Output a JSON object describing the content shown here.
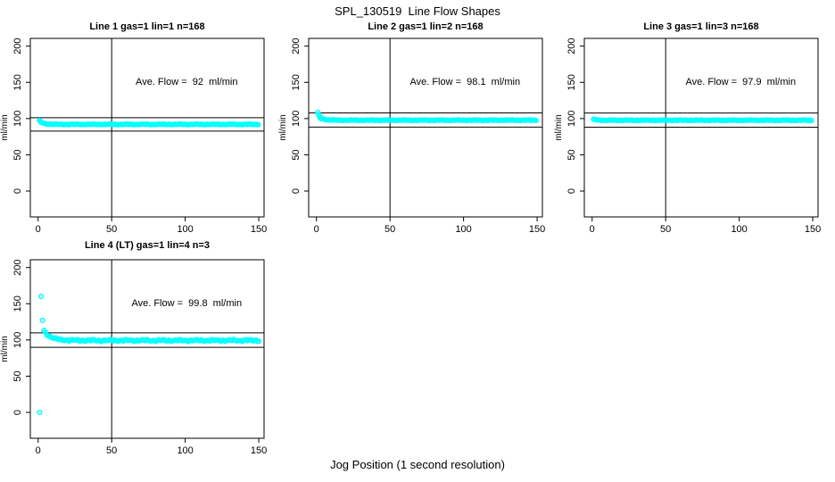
{
  "title": "SPL_130519  Line Flow Shapes",
  "xlabel": "Jog Position (1 second resolution)",
  "point_color": "#00ffff",
  "line_color": "#000000",
  "chart_data": [
    {
      "type": "scatter",
      "title": "Line 1 gas=1 lin=1 n=168",
      "annotation": "Ave. Flow =  92  ml/min",
      "annotation_xy": [
        101,
        150
      ],
      "ave_flow": 92,
      "n": 168,
      "ylabel": "ml/min",
      "x_ticks": [
        0,
        50,
        100,
        150
      ],
      "y_ticks": [
        0,
        50,
        100,
        150,
        200
      ],
      "xlim": [
        -5.3,
        153.6
      ],
      "ylim": [
        -35.7,
        210.7
      ],
      "vline_x": 50,
      "ref_lines": [
        101.2,
        82.8
      ],
      "points": [
        [
          1,
          97.5
        ],
        [
          1.5,
          96.2
        ],
        [
          2,
          95.2
        ]
      ],
      "band": {
        "x_from": 2,
        "x_to": 150,
        "step": 0.9,
        "start": 94.8,
        "settle": 92,
        "tau": 3,
        "jitter": 0.7
      }
    },
    {
      "type": "scatter",
      "title": "Line 2 gas=1 lin=2 n=168",
      "annotation": "Ave. Flow =  98.1  ml/min",
      "annotation_xy": [
        101,
        150
      ],
      "ave_flow": 98.1,
      "n": 168,
      "ylabel": "ml/min",
      "x_ticks": [
        0,
        50,
        100,
        150
      ],
      "y_ticks": [
        0,
        50,
        100,
        150,
        200
      ],
      "xlim": [
        -5.3,
        153.6
      ],
      "ylim": [
        -35.7,
        210.7
      ],
      "vline_x": 50,
      "ref_lines": [
        107.9,
        88.3
      ],
      "points": [
        [
          1,
          108.5
        ],
        [
          1.5,
          105.5
        ],
        [
          2,
          103
        ],
        [
          2.5,
          101
        ],
        [
          3,
          99.8
        ]
      ],
      "band": {
        "x_from": 3.5,
        "x_to": 150,
        "step": 0.9,
        "start": 100.5,
        "settle": 97.8,
        "tau": 2.5,
        "jitter": 0.6
      }
    },
    {
      "type": "scatter",
      "title": "Line 3 gas=1 lin=3 n=168",
      "annotation": "Ave. Flow =  97.9  ml/min",
      "annotation_xy": [
        101,
        150
      ],
      "ave_flow": 97.9,
      "n": 168,
      "ylabel": "ml/min",
      "x_ticks": [
        0,
        50,
        100,
        150
      ],
      "y_ticks": [
        0,
        50,
        100,
        150,
        200
      ],
      "xlim": [
        -5.3,
        153.6
      ],
      "ylim": [
        -35.7,
        210.7
      ],
      "vline_x": 50,
      "ref_lines": [
        107.7,
        88.1
      ],
      "points": [
        [
          1,
          99.2
        ]
      ],
      "band": {
        "x_from": 1.5,
        "x_to": 150,
        "step": 0.9,
        "start": 98.8,
        "settle": 97.7,
        "tau": 2,
        "jitter": 0.6
      }
    },
    {
      "type": "scatter",
      "title": "Line 4 (LT) gas=1 lin=4 n=3",
      "annotation": "Ave. Flow =  99.8  ml/min",
      "annotation_xy": [
        101,
        150
      ],
      "ave_flow": 99.8,
      "n": 3,
      "ylabel": "ml/min",
      "x_ticks": [
        0,
        50,
        100,
        150
      ],
      "y_ticks": [
        0,
        50,
        100,
        150,
        200
      ],
      "xlim": [
        -5.3,
        153.6
      ],
      "ylim": [
        -35.7,
        210.7
      ],
      "vline_x": 50,
      "ref_lines": [
        109.8,
        89.8
      ],
      "points": [
        [
          1,
          0
        ],
        [
          2,
          160
        ],
        [
          3,
          127
        ]
      ],
      "band": {
        "x_from": 4,
        "x_to": 150,
        "step": 1,
        "start": 113,
        "settle": 99.3,
        "tau": 4.5,
        "jitter": 1.7
      }
    }
  ]
}
